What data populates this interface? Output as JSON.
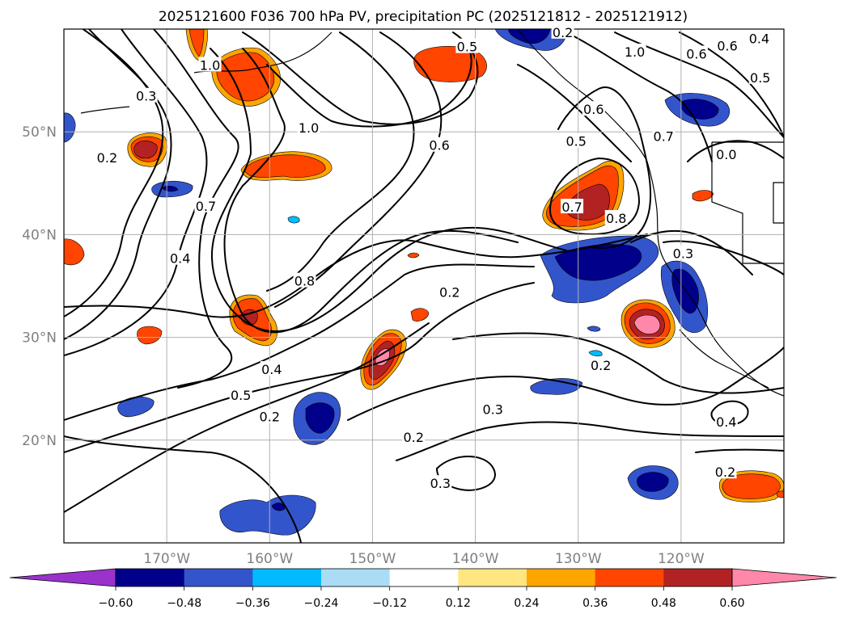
{
  "chart_data": {
    "type": "contour-map",
    "title": "2025121600 F036 700 hPa PV, precipitation PC (2025121812 - 2025121912)",
    "lon_range": [
      -180,
      -110
    ],
    "lat_range": [
      10,
      60
    ],
    "x_ticks": [
      {
        "value": -170,
        "label": "170°W"
      },
      {
        "value": -160,
        "label": "160°W"
      },
      {
        "value": -150,
        "label": "150°W"
      },
      {
        "value": -140,
        "label": "140°W"
      },
      {
        "value": -130,
        "label": "130°W"
      },
      {
        "value": -120,
        "label": "120°W"
      }
    ],
    "y_ticks": [
      {
        "value": 50,
        "label": "50°N"
      },
      {
        "value": 40,
        "label": "40°N"
      },
      {
        "value": 30,
        "label": "30°N"
      },
      {
        "value": 20,
        "label": "20°N"
      }
    ],
    "grid": true,
    "colorbar": {
      "orientation": "horizontal",
      "extend": "both",
      "bounds": [
        -0.6,
        -0.48,
        -0.36,
        -0.24,
        -0.12,
        0.12,
        0.24,
        0.36,
        0.48,
        0.6
      ],
      "tick_labels": [
        "−0.60",
        "−0.48",
        "−0.36",
        "−0.24",
        "−0.12",
        "0.12",
        "0.24",
        "0.36",
        "0.48",
        "0.60"
      ],
      "colors": [
        "#9933cc",
        "#00008b",
        "#3355cc",
        "#00bbff",
        "#aaddf5",
        "#ffffff",
        "#ffe680",
        "#ffa500",
        "#ff4500",
        "#b22222",
        "#ff88aa"
      ]
    },
    "contour_labels": [
      {
        "text": "0.3",
        "lon": -172,
        "lat": 53.5
      },
      {
        "text": "0.2",
        "lon": -175.8,
        "lat": 47.5
      },
      {
        "text": "1.0",
        "lon": -165.8,
        "lat": 56.5
      },
      {
        "text": "0.7",
        "lon": -166.2,
        "lat": 42.8
      },
      {
        "text": "0.4",
        "lon": -168.7,
        "lat": 37.7
      },
      {
        "text": "0.8",
        "lon": -156.6,
        "lat": 35.5
      },
      {
        "text": "1.0",
        "lon": -156.2,
        "lat": 50.4
      },
      {
        "text": "0.6",
        "lon": -143.5,
        "lat": 48.7
      },
      {
        "text": "0.5",
        "lon": -140.8,
        "lat": 58.3
      },
      {
        "text": "0.2",
        "lon": -142.5,
        "lat": 34.4
      },
      {
        "text": "0.5",
        "lon": -162.8,
        "lat": 24.4
      },
      {
        "text": "0.4",
        "lon": -159.8,
        "lat": 26.9
      },
      {
        "text": "0.2",
        "lon": -160.0,
        "lat": 22.3
      },
      {
        "text": "0.3",
        "lon": -138.3,
        "lat": 23.0
      },
      {
        "text": "0.2",
        "lon": -146.0,
        "lat": 20.3
      },
      {
        "text": "0.3",
        "lon": -143.4,
        "lat": 15.8
      },
      {
        "text": "0.2",
        "lon": -127.8,
        "lat": 27.3
      },
      {
        "text": "0.7",
        "lon": -130.6,
        "lat": 42.7
      },
      {
        "text": "0.8",
        "lon": -126.3,
        "lat": 41.6
      },
      {
        "text": "0.5",
        "lon": -130.2,
        "lat": 49.1
      },
      {
        "text": "1.0",
        "lon": -124.5,
        "lat": 57.8
      },
      {
        "text": "0.6",
        "lon": -118.5,
        "lat": 57.6
      },
      {
        "text": "0.6",
        "lon": -115.5,
        "lat": 58.4
      },
      {
        "text": "0.5",
        "lon": -112.3,
        "lat": 55.3
      },
      {
        "text": "0.4",
        "lon": -112.4,
        "lat": 59.1
      },
      {
        "text": "0.2",
        "lon": -131.5,
        "lat": 59.7
      },
      {
        "text": "0.7",
        "lon": -121.7,
        "lat": 49.6
      },
      {
        "text": "0.0",
        "lon": -115.6,
        "lat": 47.8
      },
      {
        "text": "0.3",
        "lon": -119.8,
        "lat": 38.2
      },
      {
        "text": "0.4",
        "lon": -115.6,
        "lat": 21.8
      },
      {
        "text": "0.2",
        "lon": -115.7,
        "lat": 16.9
      },
      {
        "text": "0.6",
        "lon": -128.5,
        "lat": 52.2
      }
    ]
  }
}
